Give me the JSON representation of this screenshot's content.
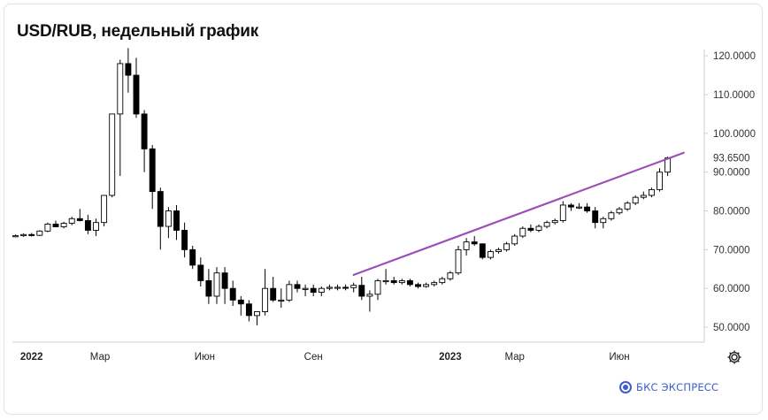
{
  "title": "USD/RUB, недельный график",
  "brand": "БКС ЭКСПРЕСС",
  "colors": {
    "up_body": "#ffffff",
    "down_body": "#000000",
    "candle_border": "#000000",
    "trendline": "#9b4fb8",
    "axis_text": "#333333",
    "axis_line": "#cfcfcf",
    "brand": "#3d5dc9"
  },
  "settings_icon": "gear-icon",
  "chart_data": {
    "type": "candlestick",
    "interval": "weekly",
    "y_axis": {
      "ticks": [
        "50.0000",
        "60.0000",
        "70.0000",
        "80.0000",
        "90.0000",
        "100.0000",
        "110.0000",
        "120.0000"
      ],
      "highlight_label": "93.6500",
      "highlight_value": 93.65,
      "range": [
        47.5,
        123
      ]
    },
    "x_axis": {
      "labels": [
        {
          "text": "2022",
          "week": 2
        },
        {
          "text": "Мар",
          "week": 10.5
        },
        {
          "text": "Июн",
          "week": 23.5
        },
        {
          "text": "Сен",
          "week": 37
        },
        {
          "text": "2023",
          "week": 54
        },
        {
          "text": "Мар",
          "week": 62
        },
        {
          "text": "Июн",
          "week": 75
        }
      ]
    },
    "trendline": {
      "from": {
        "week": 42,
        "value": 63.5
      },
      "to": {
        "week": 83,
        "value": 95
      }
    },
    "candles": [
      [
        73.5,
        73.9,
        73.2,
        73.6
      ],
      [
        73.6,
        74.2,
        73.3,
        73.9
      ],
      [
        73.9,
        74.3,
        73.4,
        73.7
      ],
      [
        73.7,
        75.0,
        73.5,
        74.8
      ],
      [
        74.8,
        77.0,
        74.5,
        76.6
      ],
      [
        76.6,
        77.5,
        75.8,
        75.9
      ],
      [
        75.9,
        77.2,
        75.5,
        76.8
      ],
      [
        76.8,
        78.5,
        76.3,
        78.0
      ],
      [
        78.0,
        80.5,
        77.3,
        77.5
      ],
      [
        77.5,
        79.0,
        74.0,
        75.0
      ],
      [
        75.0,
        78.0,
        73.5,
        77.0
      ],
      [
        77.0,
        84.0,
        76.0,
        84.0
      ],
      [
        84.0,
        105.0,
        83.5,
        105.0
      ],
      [
        105.0,
        119.0,
        89.0,
        118.0
      ],
      [
        118.0,
        122.0,
        110.5,
        115.0
      ],
      [
        115.0,
        119.5,
        104.0,
        105.0
      ],
      [
        105.0,
        106.0,
        90.0,
        96.0
      ],
      [
        96.0,
        97.0,
        80.5,
        85.0
      ],
      [
        85.0,
        86.0,
        70.0,
        76.0
      ],
      [
        76.0,
        81.0,
        73.0,
        80.0
      ],
      [
        80.0,
        81.5,
        72.5,
        75.0
      ],
      [
        75.0,
        77.0,
        68.0,
        70.0
      ],
      [
        70.0,
        71.0,
        65.0,
        66.0
      ],
      [
        66.0,
        68.0,
        60.5,
        62.0
      ],
      [
        62.0,
        65.0,
        56.0,
        58.0
      ],
      [
        58.0,
        65.5,
        56.0,
        64.0
      ],
      [
        64.0,
        65.5,
        56.0,
        60.0
      ],
      [
        60.0,
        62.0,
        55.5,
        57.0
      ],
      [
        57.0,
        58.0,
        53.0,
        56.0
      ],
      [
        56.0,
        57.0,
        51.5,
        53.0
      ],
      [
        53.0,
        54.0,
        50.5,
        54.0
      ],
      [
        54.0,
        65.0,
        53.0,
        60.0
      ],
      [
        60.0,
        63.0,
        56.5,
        57.0
      ],
      [
        57.0,
        60.0,
        55.0,
        57.0
      ],
      [
        57.0,
        62.0,
        56.5,
        61.0
      ],
      [
        61.0,
        62.0,
        59.0,
        60.0
      ],
      [
        60.0,
        61.0,
        58.0,
        60.0
      ],
      [
        60.0,
        61.0,
        58.0,
        59.0
      ],
      [
        59.0,
        60.5,
        58.0,
        60.0
      ],
      [
        60.0,
        61.0,
        59.5,
        60.3
      ],
      [
        60.3,
        61.0,
        59.5,
        60.3
      ],
      [
        60.3,
        61.0,
        59.5,
        60.2
      ],
      [
        60.2,
        61.5,
        59.0,
        60.8
      ],
      [
        60.8,
        63.0,
        57.0,
        58.0
      ],
      [
        58.0,
        59.5,
        54.0,
        58.5
      ],
      [
        58.5,
        62.5,
        57.0,
        62.0
      ],
      [
        62.0,
        65.0,
        61.0,
        62.0
      ],
      [
        62.0,
        63.0,
        61.0,
        61.5
      ],
      [
        61.5,
        62.5,
        61.0,
        62.0
      ],
      [
        62.0,
        62.5,
        60.5,
        61.0
      ],
      [
        61.0,
        61.5,
        60.0,
        60.5
      ],
      [
        60.5,
        61.5,
        60.2,
        61.0
      ],
      [
        61.0,
        62.0,
        60.5,
        61.5
      ],
      [
        61.5,
        63.0,
        61.0,
        62.5
      ],
      [
        62.5,
        64.5,
        62.0,
        64.0
      ],
      [
        64.0,
        71.0,
        63.5,
        70.0
      ],
      [
        70.0,
        73.0,
        68.5,
        72.0
      ],
      [
        72.0,
        73.5,
        71.0,
        71.5
      ],
      [
        71.5,
        71.6,
        67.5,
        68.0
      ],
      [
        68.0,
        70.0,
        67.5,
        69.5
      ],
      [
        69.5,
        70.5,
        69.0,
        70.0
      ],
      [
        70.0,
        72.0,
        69.5,
        71.5
      ],
      [
        71.5,
        74.0,
        71.0,
        73.5
      ],
      [
        73.5,
        76.0,
        73.0,
        75.5
      ],
      [
        75.5,
        76.5,
        74.5,
        75.0
      ],
      [
        75.0,
        76.5,
        74.5,
        76.0
      ],
      [
        76.0,
        77.5,
        75.5,
        77.0
      ],
      [
        77.0,
        78.0,
        76.5,
        77.5
      ],
      [
        77.5,
        82.5,
        77.0,
        81.5
      ],
      [
        81.5,
        82.0,
        80.0,
        81.0
      ],
      [
        81.0,
        82.0,
        80.5,
        81.0
      ],
      [
        81.0,
        82.0,
        79.5,
        80.0
      ],
      [
        80.0,
        81.0,
        75.5,
        77.0
      ],
      [
        77.0,
        78.5,
        75.5,
        78.0
      ],
      [
        78.0,
        80.0,
        77.5,
        79.5
      ],
      [
        79.5,
        81.0,
        79.0,
        80.5
      ],
      [
        80.5,
        82.5,
        80.0,
        82.0
      ],
      [
        82.0,
        84.0,
        81.5,
        83.5
      ],
      [
        83.5,
        85.0,
        83.0,
        84.0
      ],
      [
        84.0,
        86.0,
        83.5,
        85.5
      ],
      [
        85.5,
        91.0,
        85.0,
        90.0
      ],
      [
        90.0,
        94.0,
        89.0,
        93.65
      ]
    ]
  }
}
